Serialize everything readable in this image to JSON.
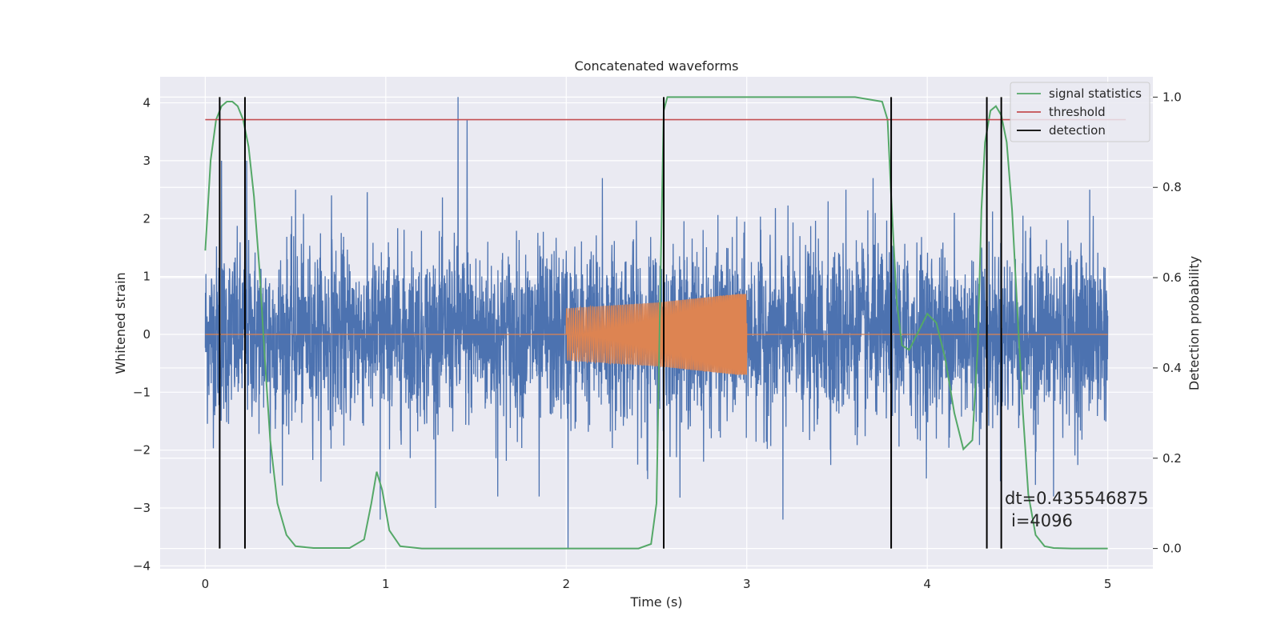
{
  "chart_data": {
    "type": "line",
    "title": "Concatenated waveforms",
    "xlabel": "Time (s)",
    "ylabel": "Whitened strain",
    "y2label": "Detection probability",
    "xlim": [
      -0.25,
      5.25
    ],
    "ylim": [
      -4.05,
      4.45
    ],
    "y2lim": [
      -0.045,
      1.045
    ],
    "xticks": [
      0,
      1,
      2,
      3,
      4,
      5
    ],
    "yticks": [
      -4,
      -3,
      -2,
      -1,
      0,
      1,
      2,
      3,
      4
    ],
    "y2ticks": [
      0.0,
      0.2,
      0.4,
      0.6,
      0.8,
      1.0
    ],
    "grid": true,
    "legend_position": "top-right",
    "legend": [
      "signal statistics",
      "threshold",
      "detection"
    ],
    "colors": {
      "strain": "#4c72b0",
      "injection": "#dd8452",
      "signal_statistics": "#55a868",
      "threshold": "#c44e52",
      "detection": "#000000",
      "background": "#eaeaf2",
      "grid": "#ffffff"
    },
    "series": [
      {
        "name": "signal statistics",
        "axis": "right",
        "x": [
          0.0,
          0.03,
          0.06,
          0.09,
          0.12,
          0.15,
          0.18,
          0.21,
          0.24,
          0.27,
          0.3,
          0.33,
          0.36,
          0.4,
          0.45,
          0.5,
          0.6,
          0.8,
          0.88,
          0.92,
          0.95,
          0.98,
          1.02,
          1.08,
          1.2,
          1.6,
          2.0,
          2.4,
          2.47,
          2.5,
          2.52,
          2.54,
          2.56,
          2.6,
          2.8,
          3.2,
          3.6,
          3.75,
          3.78,
          3.8,
          3.83,
          3.86,
          3.9,
          3.95,
          4.0,
          4.05,
          4.1,
          4.15,
          4.2,
          4.25,
          4.28,
          4.3,
          4.32,
          4.35,
          4.38,
          4.41,
          4.44,
          4.47,
          4.5,
          4.53,
          4.56,
          4.6,
          4.65,
          4.7,
          4.8,
          4.9,
          5.0
        ],
        "y": [
          0.66,
          0.86,
          0.95,
          0.98,
          0.99,
          0.99,
          0.98,
          0.95,
          0.89,
          0.78,
          0.62,
          0.42,
          0.24,
          0.1,
          0.03,
          0.005,
          0.001,
          0.001,
          0.02,
          0.1,
          0.17,
          0.13,
          0.04,
          0.005,
          0.0,
          0.0,
          0.0,
          0.0,
          0.01,
          0.1,
          0.55,
          0.97,
          1.0,
          1.0,
          1.0,
          1.0,
          1.0,
          0.99,
          0.95,
          0.78,
          0.55,
          0.45,
          0.44,
          0.48,
          0.52,
          0.5,
          0.42,
          0.3,
          0.22,
          0.24,
          0.45,
          0.75,
          0.9,
          0.97,
          0.98,
          0.96,
          0.9,
          0.75,
          0.52,
          0.3,
          0.12,
          0.03,
          0.005,
          0.001,
          0.0,
          0.0,
          0.0
        ]
      },
      {
        "name": "threshold",
        "axis": "right",
        "x": [
          0,
          5.1
        ],
        "y": [
          0.95,
          0.95
        ]
      },
      {
        "name": "detection",
        "axis": "right",
        "x": [
          0.08,
          0.22,
          2.54,
          3.8,
          4.33,
          4.41
        ],
        "y_range": [
          0.0,
          1.0
        ]
      },
      {
        "name": "",
        "axis": "left",
        "description": "whitened strain noise",
        "x_range": [
          0,
          5
        ],
        "amplitude_sigma": 0.75,
        "peaks": [
          [
            0.08,
            2.3
          ],
          [
            0.09,
            3.0
          ],
          [
            0.23,
            3.0
          ],
          [
            1.4,
            4.1
          ],
          [
            1.45,
            3.7
          ],
          [
            2.01,
            -3.7
          ],
          [
            0.97,
            -3.2
          ],
          [
            3.2,
            -3.2
          ],
          [
            1.62,
            -2.8
          ],
          [
            1.85,
            -2.8
          ],
          [
            0.7,
            2.4
          ],
          [
            3.7,
            2.7
          ],
          [
            4.9,
            2.5
          ],
          [
            3.45,
            2.3
          ],
          [
            4.15,
            2.1
          ],
          [
            2.2,
            2.7
          ],
          [
            0.5,
            2.5
          ],
          [
            4.3,
            1.5
          ],
          [
            4.6,
            -2.6
          ],
          [
            2.45,
            -2.5
          ],
          [
            3.55,
            2.5
          ],
          [
            0.36,
            -2.4
          ],
          [
            4.7,
            -2.8
          ]
        ]
      },
      {
        "name": "",
        "axis": "left",
        "description": "injected chirp waveform",
        "x_range": [
          2.0,
          3.0
        ],
        "envelope": [
          [
            2.0,
            0.45
          ],
          [
            2.5,
            0.55
          ],
          [
            2.95,
            0.7
          ],
          [
            3.0,
            0.7
          ]
        ]
      }
    ],
    "annotations": [
      "dt=0.435546875",
      "i=4096"
    ]
  }
}
